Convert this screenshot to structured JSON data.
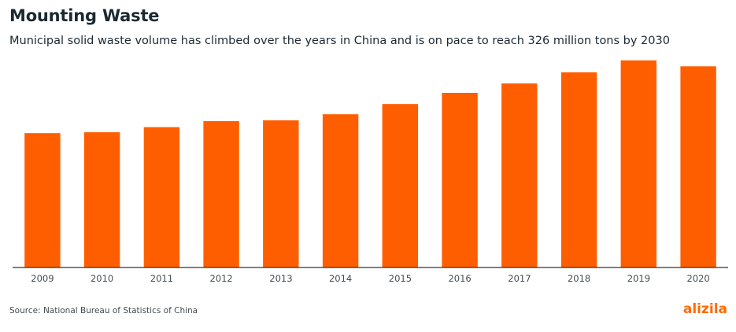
{
  "title": "Mounting Waste",
  "subtitle": "Municipal solid waste volume has climbed over the years in China and is on pace to reach 326 million tons by 2030",
  "source": "Source: National Bureau of Statistics of China",
  "brand": "alizila",
  "colors": {
    "bar": "#ff5e00",
    "brand": "#ff6a00",
    "axis": "#333333"
  },
  "chart_data": {
    "type": "bar",
    "categories": [
      "2009",
      "2010",
      "2011",
      "2012",
      "2013",
      "2014",
      "2015",
      "2016",
      "2017",
      "2018",
      "2019",
      "2020"
    ],
    "values": [
      157,
      158,
      164,
      171,
      172,
      179,
      191,
      204,
      215,
      228,
      242,
      235
    ],
    "title": "Mounting Waste",
    "xlabel": "",
    "ylabel": "",
    "ylim": [
      0,
      250
    ],
    "grid": false,
    "legend": "none"
  }
}
